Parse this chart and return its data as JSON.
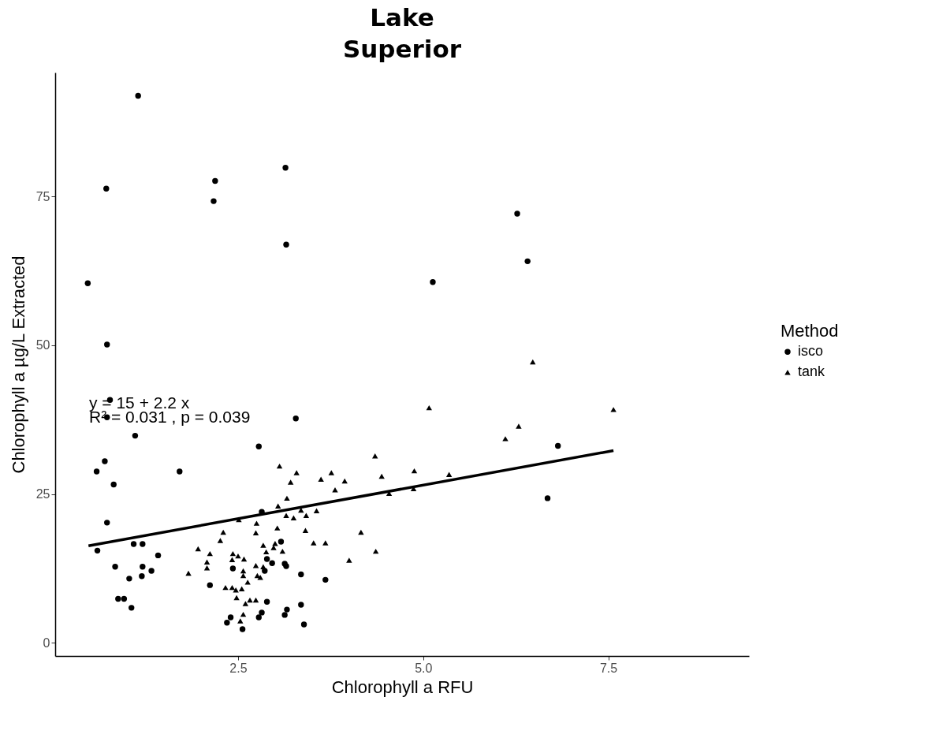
{
  "chart_data": {
    "type": "scatter",
    "title": "Lake Superior",
    "xlabel": "Chlorophyll a RFU",
    "ylabel": "Chlorophyll a µg/L Extracted",
    "legend_title": "Method",
    "legend": "right",
    "grid": false,
    "xlim": [
      0.03,
      9.4
    ],
    "ylim": [
      -2.2,
      95.8
    ],
    "xticks": [
      {
        "value": 2.5,
        "label": "2.5"
      },
      {
        "value": 5,
        "label": "5.0"
      },
      {
        "value": 7.5,
        "label": "7.5"
      }
    ],
    "yticks": [
      0,
      25,
      50,
      75
    ],
    "annotations": [
      "y = 15 + 2.2 x",
      "R² = 0.031 ,  p = 0.039"
    ],
    "series": [
      {
        "name": "isco",
        "color": "#000000",
        "marker": "circle",
        "x": [
          1.15,
          0.72,
          2.19,
          2.17,
          3.14,
          3.15,
          0.47,
          0.73,
          6.27,
          6.41,
          5.13,
          0.77,
          0.73,
          3.28,
          1.11,
          0.7,
          0.59,
          1.71,
          0.82,
          0.73,
          0.6,
          1.09,
          1.21,
          1.42,
          0.84,
          1.21,
          1.33,
          1.2,
          1.03,
          0.88,
          0.96,
          1.06,
          2.12,
          2.4,
          2.35,
          2.56,
          2.78,
          2.82,
          3.08,
          2.43,
          2.86,
          2.89,
          2.96,
          3.13,
          3.15,
          3.35,
          3.68,
          2.89,
          3.35,
          2.82,
          2.78,
          3.16,
          3.13,
          3.39,
          6.82,
          6.68
        ],
        "values": [
          91.9,
          76.3,
          77.6,
          74.2,
          79.8,
          66.9,
          60.4,
          50.1,
          72.1,
          64.1,
          60.6,
          40.8,
          37.9,
          37.7,
          34.8,
          30.5,
          28.8,
          28.8,
          26.6,
          20.2,
          15.5,
          16.6,
          16.6,
          14.7,
          12.8,
          12.8,
          12.1,
          11.2,
          10.8,
          7.4,
          7.4,
          5.9,
          9.7,
          4.3,
          3.4,
          2.3,
          33.0,
          22.0,
          17.0,
          12.5,
          12.1,
          14.1,
          13.4,
          13.3,
          12.9,
          11.5,
          10.6,
          6.9,
          6.4,
          5.1,
          4.3,
          5.6,
          4.7,
          3.1,
          33.1,
          24.3
        ]
      },
      {
        "name": "tank",
        "color": "#000000",
        "marker": "triangle",
        "x": [
          3.06,
          3.29,
          3.21,
          3.76,
          3.62,
          3.94,
          3.81,
          3.16,
          3.04,
          3.15,
          3.25,
          3.35,
          3.42,
          3.56,
          2.51,
          2.75,
          2.74,
          3.03,
          3.41,
          2.3,
          2.26,
          1.96,
          2.12,
          2.08,
          2.08,
          1.83,
          3.52,
          3.68,
          4.0,
          2.84,
          3.0,
          3.1,
          2.88,
          2.43,
          2.5,
          2.58,
          2.42,
          2.74,
          2.84,
          2.57,
          2.57,
          2.76,
          2.8,
          2.63,
          2.33,
          2.42,
          2.47,
          2.55,
          2.48,
          2.6,
          2.66,
          2.74,
          2.57,
          2.53,
          2.98,
          6.48,
          5.08,
          7.57,
          6.29,
          6.11,
          4.35,
          4.88,
          4.44,
          5.35,
          4.54,
          4.87,
          4.16,
          4.36
        ],
        "values": [
          29.7,
          28.6,
          27.0,
          28.6,
          27.5,
          27.2,
          25.7,
          24.3,
          23.0,
          21.4,
          21.0,
          22.3,
          21.4,
          22.2,
          20.7,
          20.1,
          18.5,
          19.3,
          18.9,
          18.6,
          17.2,
          15.8,
          15.0,
          13.6,
          12.6,
          11.7,
          16.8,
          16.8,
          13.9,
          16.4,
          16.7,
          15.4,
          15.3,
          15.0,
          14.6,
          14.1,
          14.0,
          13.0,
          12.8,
          12.1,
          11.3,
          11.3,
          11.0,
          10.2,
          9.3,
          9.3,
          8.9,
          9.1,
          7.6,
          6.6,
          7.2,
          7.2,
          4.8,
          3.7,
          16.0,
          47.2,
          39.5,
          39.2,
          36.4,
          34.3,
          31.4,
          28.9,
          28.0,
          28.3,
          25.1,
          25.9,
          18.6,
          15.4
        ]
      },
      {
        "type": "line",
        "color": "#000000",
        "line_style": "solid",
        "marker": "none",
        "x": [
          0.48,
          7.57
        ],
        "values": [
          16.3,
          32.3
        ]
      }
    ]
  }
}
